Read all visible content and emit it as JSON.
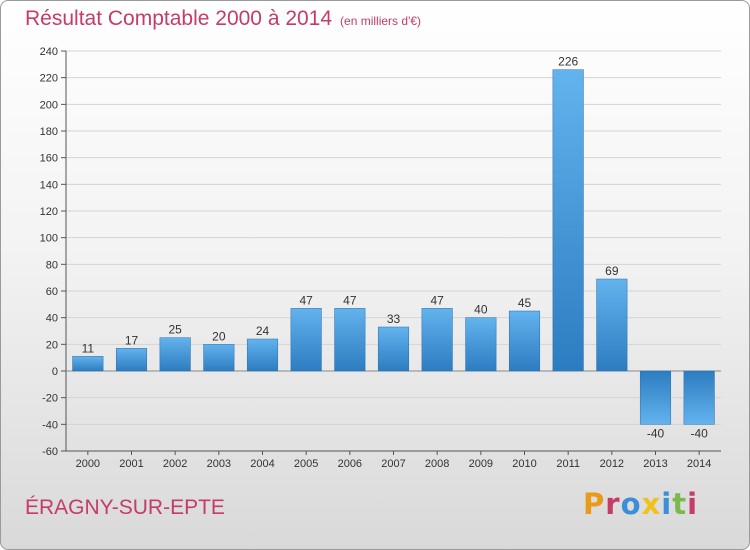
{
  "chart_data": {
    "type": "bar",
    "title": "Résultat Comptable 2000 à 2014",
    "subtitle": "(en milliers d'€)",
    "categories": [
      "2000",
      "2001",
      "2002",
      "2003",
      "2004",
      "2005",
      "2006",
      "2007",
      "2008",
      "2009",
      "2010",
      "2011",
      "2012",
      "2013",
      "2014"
    ],
    "values": [
      11,
      17,
      25,
      20,
      24,
      47,
      47,
      33,
      47,
      40,
      45,
      226,
      69,
      -40,
      -40
    ],
    "ylim": [
      -60,
      240
    ],
    "yticks": [
      240,
      220,
      200,
      180,
      160,
      140,
      120,
      100,
      80,
      60,
      40,
      20,
      0,
      -20,
      -40,
      -60
    ],
    "grid": true,
    "bar_color": "#3d92d6"
  },
  "footer": {
    "place": "ÉRAGNY-SUR-EPTE",
    "logo": "Proxiti"
  }
}
